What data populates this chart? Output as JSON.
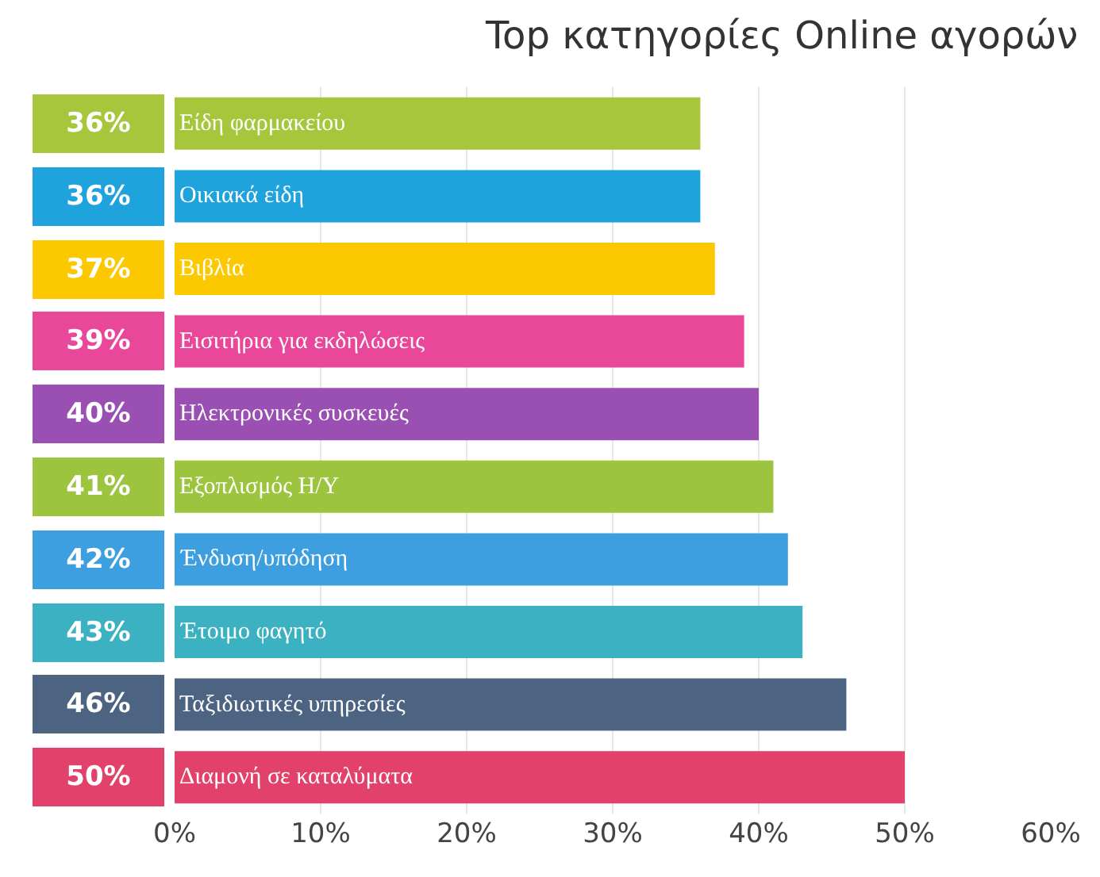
{
  "chart_data": {
    "type": "bar",
    "orientation": "horizontal",
    "title": "Top κατηγορίες Online αγορών",
    "categories": [
      "Είδη φαρμακείου",
      "Οικιακά είδη",
      "Βιβλία",
      "Εισιτήρια για εκδηλώσεις",
      "Ηλεκτρονικές συσκευές",
      "Εξοπλισμός Η/Υ",
      "Ένδυση/υπόδηση",
      "Έτοιμο φαγητό",
      "Ταξιδιωτικές υπηρεσίες",
      "Διαμονή σε καταλύματα"
    ],
    "values": [
      36,
      36,
      37,
      39,
      40,
      41,
      42,
      43,
      46,
      50
    ],
    "value_labels": [
      "36%",
      "36%",
      "37%",
      "39%",
      "40%",
      "41%",
      "42%",
      "43%",
      "46%",
      "50%"
    ],
    "colors": [
      "#a8c63c",
      "#1ea3dc",
      "#fcc800",
      "#e8479a",
      "#9a50b2",
      "#9dc43e",
      "#3d9fe0",
      "#3bb1c2",
      "#4c6482",
      "#e2416c"
    ],
    "xlim": [
      0,
      60
    ],
    "xticks": [
      {
        "value": 0,
        "label": "0%"
      },
      {
        "value": 10,
        "label": "10%"
      },
      {
        "value": 20,
        "label": "20%"
      },
      {
        "value": 30,
        "label": "30%"
      },
      {
        "value": 40,
        "label": "40%"
      },
      {
        "value": 50,
        "label": "50%"
      },
      {
        "value": 60,
        "label": "60%"
      }
    ],
    "grid": "x",
    "legend": false
  }
}
